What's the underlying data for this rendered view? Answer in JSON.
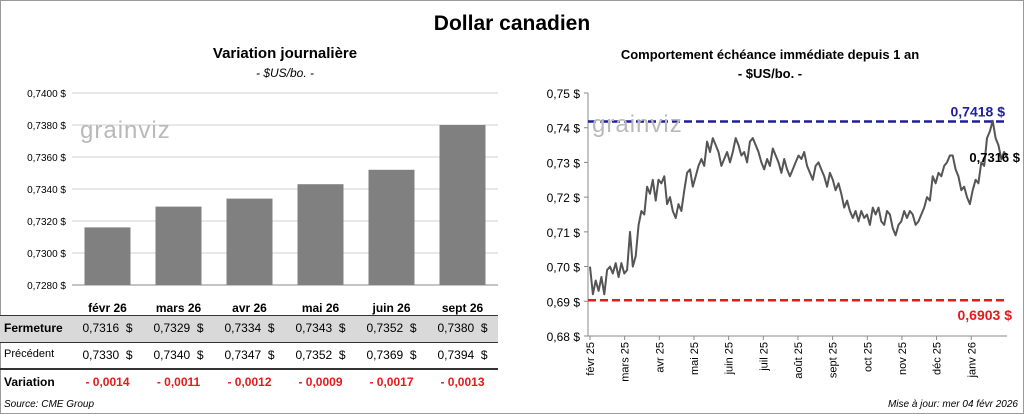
{
  "title": "Dollar canadien",
  "left": {
    "title": "Variation  journalière",
    "subtitle": "- $US/bo. -",
    "table": {
      "row_labels": [
        "Fermeture",
        "Précédent",
        "Variation"
      ],
      "fermeture": [
        "0,7316  $",
        "0,7329  $",
        "0,7334  $",
        "0,7343  $",
        "0,7352  $",
        "0,7380  $"
      ],
      "precedent": [
        "0,7330  $",
        "0,7340  $",
        "0,7347  $",
        "0,7352  $",
        "0,7369  $",
        "0,7394  $"
      ],
      "variation": [
        "- 0,0014",
        "- 0,0011",
        "- 0,0012",
        "- 0,0009",
        "- 0,0017",
        "- 0,0013"
      ]
    }
  },
  "right": {
    "title": "Comportement échéance immédiate depuis 1 an",
    "subtitle": "- $US/bo. -"
  },
  "watermark": "grainviz",
  "footer": {
    "source": "Source: CME Group",
    "updated": "Mise à jour: mer 04 févr 2026"
  },
  "colors": {
    "bar": "#808080",
    "line": "#555555",
    "max_line": "#1f1f9e",
    "min_line": "#e31b1b",
    "negative": "#e31b1b",
    "band": "#d9d9d9"
  },
  "chart_data": [
    {
      "type": "bar",
      "categories": [
        "févr 26",
        "mars 26",
        "avr 26",
        "mai 26",
        "juin 26",
        "sept 26"
      ],
      "values": [
        0.7316,
        0.7329,
        0.7334,
        0.7343,
        0.7352,
        0.738
      ],
      "ylim": [
        0.728,
        0.74
      ],
      "yticks": [
        "0,7280 $",
        "0,7300 $",
        "0,7320 $",
        "0,7340 $",
        "0,7360 $",
        "0,7380 $",
        "0,7400 $"
      ],
      "grid": true
    },
    {
      "type": "line",
      "ylim": [
        0.68,
        0.75
      ],
      "yticks": [
        "0,68 $",
        "0,69 $",
        "0,70 $",
        "0,71 $",
        "0,72 $",
        "0,73 $",
        "0,74 $",
        "0,75 $"
      ],
      "xticks": [
        "févr 25",
        "mars 25",
        "avr 25",
        "mai 25",
        "juin 25",
        "juil 25",
        "août 25",
        "sept 25",
        "oct 25",
        "nov 25",
        "déc 25",
        "janv 26"
      ],
      "max": {
        "value": 0.7418,
        "label": "0,7418 $"
      },
      "min": {
        "value": 0.6903,
        "label": "0,6903 $"
      },
      "last": {
        "value": 0.7316,
        "label": "0,7316 $"
      },
      "series": [
        {
          "values": [
            0.7,
            0.692,
            0.696,
            0.693,
            0.697,
            0.692,
            0.699,
            0.7,
            0.698,
            0.701,
            0.697,
            0.701,
            0.698,
            0.699,
            0.71,
            0.7,
            0.703,
            0.712,
            0.716,
            0.715,
            0.723,
            0.721,
            0.725,
            0.719,
            0.725,
            0.724,
            0.726,
            0.718,
            0.72,
            0.716,
            0.714,
            0.718,
            0.716,
            0.722,
            0.727,
            0.728,
            0.723,
            0.726,
            0.729,
            0.731,
            0.729,
            0.736,
            0.733,
            0.737,
            0.735,
            0.733,
            0.729,
            0.731,
            0.733,
            0.73,
            0.733,
            0.737,
            0.735,
            0.732,
            0.733,
            0.73,
            0.736,
            0.737,
            0.735,
            0.733,
            0.73,
            0.728,
            0.731,
            0.729,
            0.734,
            0.732,
            0.73,
            0.727,
            0.731,
            0.728,
            0.726,
            0.728,
            0.73,
            0.732,
            0.731,
            0.733,
            0.729,
            0.727,
            0.725,
            0.729,
            0.73,
            0.728,
            0.726,
            0.723,
            0.727,
            0.725,
            0.722,
            0.724,
            0.721,
            0.717,
            0.719,
            0.716,
            0.714,
            0.716,
            0.713,
            0.716,
            0.714,
            0.715,
            0.712,
            0.717,
            0.715,
            0.717,
            0.713,
            0.712,
            0.716,
            0.715,
            0.711,
            0.709,
            0.712,
            0.713,
            0.716,
            0.714,
            0.716,
            0.715,
            0.712,
            0.713,
            0.715,
            0.717,
            0.72,
            0.719,
            0.726,
            0.724,
            0.727,
            0.726,
            0.729,
            0.73,
            0.732,
            0.732,
            0.728,
            0.726,
            0.722,
            0.723,
            0.72,
            0.718,
            0.722,
            0.725,
            0.724,
            0.73,
            0.729,
            0.737,
            0.739,
            0.742,
            0.737,
            0.735,
            0.731,
            0.733,
            0.7316
          ]
        }
      ]
    }
  ]
}
